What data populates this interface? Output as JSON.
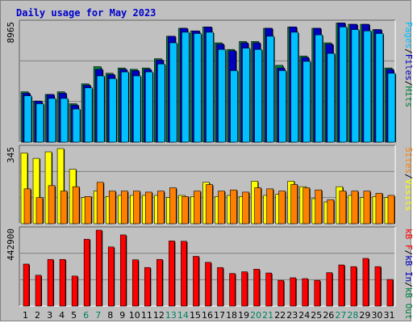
{
  "title": "Daily usage for May 2023",
  "colors": {
    "hits": "#008040",
    "files": "#0000c0",
    "pages": "#00c0ff",
    "visits": "#ffff00",
    "sites": "#ff8000",
    "kb": "#ff0000",
    "day_normal": "#000000",
    "day_weekend": "#008060"
  },
  "chart_data": [
    {
      "type": "bar",
      "panel": "hits-files-pages",
      "max_label": "8965",
      "ylim": [
        0,
        8965
      ],
      "legend_right": [
        {
          "text": "Pages",
          "color": "#00c0ff"
        },
        {
          "text": "/",
          "color": "#000000"
        },
        {
          "text": "Files",
          "color": "#0000c0"
        },
        {
          "text": "/",
          "color": "#000000"
        },
        {
          "text": "Hits",
          "color": "#008040"
        }
      ],
      "series": [
        {
          "name": "Hits",
          "values": [
            3800,
            3100,
            3600,
            3800,
            2900,
            4400,
            5700,
            5200,
            5600,
            5500,
            5600,
            6300,
            8000,
            8600,
            8400,
            8700,
            7500,
            7000,
            7600,
            7600,
            8600,
            5800,
            8700,
            6500,
            8600,
            7500,
            9000,
            8900,
            8900,
            8500,
            5600
          ]
        },
        {
          "name": "Files",
          "values": [
            3700,
            3100,
            3600,
            3700,
            2800,
            4300,
            5500,
            5100,
            5500,
            5400,
            5500,
            6200,
            8000,
            8600,
            8400,
            8700,
            7400,
            6900,
            7500,
            7500,
            8600,
            5600,
            8700,
            6400,
            8600,
            7400,
            9000,
            8900,
            8900,
            8500,
            5500
          ]
        },
        {
          "name": "Pages",
          "values": [
            3500,
            2900,
            3300,
            3300,
            2500,
            4100,
            5000,
            4800,
            5300,
            5000,
            5300,
            5900,
            7500,
            8300,
            8200,
            8300,
            7000,
            5400,
            7100,
            7000,
            8000,
            5400,
            8300,
            6100,
            8100,
            6700,
            8700,
            8500,
            8400,
            8200,
            5200
          ]
        }
      ]
    },
    {
      "type": "bar",
      "panel": "visits-sites",
      "max_label": "345",
      "ylim": [
        0,
        345
      ],
      "legend_right": [
        {
          "text": "Sites",
          "color": "#ff8000"
        },
        {
          "text": "/",
          "color": "#000000"
        },
        {
          "text": "Visits",
          "color": "#ffff00"
        }
      ],
      "series": [
        {
          "name": "Visits",
          "values": [
            325,
            300,
            330,
            345,
            250,
            120,
            150,
            125,
            130,
            130,
            130,
            130,
            120,
            130,
            125,
            190,
            125,
            130,
            125,
            195,
            130,
            135,
            195,
            170,
            115,
            100,
            170,
            130,
            120,
            125,
            120
          ]
        },
        {
          "name": "Sites",
          "values": [
            160,
            120,
            175,
            150,
            170,
            125,
            190,
            150,
            150,
            150,
            145,
            150,
            165,
            125,
            150,
            180,
            150,
            155,
            145,
            165,
            160,
            150,
            180,
            165,
            155,
            110,
            150,
            150,
            150,
            140,
            130
          ]
        }
      ]
    },
    {
      "type": "bar",
      "panel": "kbytes",
      "max_label": "442900",
      "ylim": [
        0,
        442900
      ],
      "legend_right": [
        {
          "text": "kB F",
          "color": "#ff0000"
        },
        {
          "text": "/",
          "color": "#000000"
        },
        {
          "text": "kB In",
          "color": "#0000c0"
        },
        {
          "text": "/",
          "color": "#000000"
        },
        {
          "text": "kB Out",
          "color": "#008040"
        }
      ],
      "series": [
        {
          "name": "kB F",
          "values": [
            245000,
            180000,
            272000,
            272000,
            175000,
            390000,
            442900,
            345000,
            415000,
            270000,
            225000,
            272000,
            380000,
            378000,
            290000,
            255000,
            225000,
            190000,
            200000,
            215000,
            193000,
            150000,
            165000,
            160000,
            150000,
            195000,
            240000,
            230000,
            278000,
            230000,
            155000
          ]
        }
      ]
    }
  ],
  "days": [
    "1",
    "2",
    "3",
    "4",
    "5",
    "6",
    "7",
    "8",
    "9",
    "10",
    "11",
    "12",
    "13",
    "14",
    "15",
    "16",
    "17",
    "18",
    "19",
    "20",
    "21",
    "22",
    "23",
    "24",
    "25",
    "26",
    "27",
    "28",
    "29",
    "30",
    "31"
  ],
  "weekend_days": [
    6,
    7,
    13,
    14,
    20,
    21,
    27,
    28
  ]
}
